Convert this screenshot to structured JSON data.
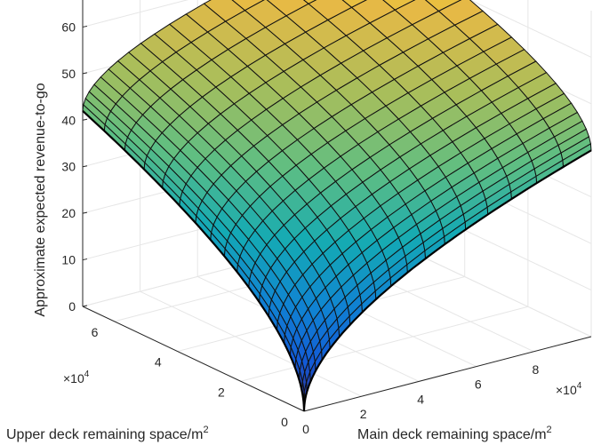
{
  "chart_data": {
    "type": "surface",
    "title": "",
    "xlabel": "Main deck remaining space/m",
    "xlabel_sup": "2",
    "ylabel": "Upper deck remaining space/m",
    "ylabel_sup": "2",
    "zlabel": "Approximate expected revenue-to-go",
    "x_multiplier": "×10",
    "x_multiplier_exp": "4",
    "y_multiplier": "×10",
    "y_multiplier_exp": "4",
    "x_range": [
      0,
      100000
    ],
    "y_range": [
      0,
      70000
    ],
    "z_range": [
      0,
      70
    ],
    "x_ticks": [
      "0",
      "2",
      "4",
      "6",
      "8"
    ],
    "y_ticks": [
      "0",
      "2",
      "4",
      "6"
    ],
    "z_ticks": [
      "0",
      "10",
      "20",
      "30",
      "40",
      "50",
      "60"
    ],
    "grid": true,
    "colormap": "parula",
    "surface_corners": {
      "origin": 0,
      "max_main_deck_only": 40,
      "max_upper_deck_only": 42,
      "max_both": 67
    }
  }
}
